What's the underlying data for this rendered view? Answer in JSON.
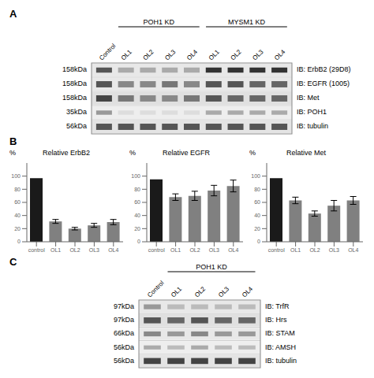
{
  "chart_data": [
    {
      "type": "blot",
      "panel": "A",
      "categories": [
        "Control",
        "OL1",
        "OL2",
        "OL3",
        "OL4",
        "OL1",
        "OL2",
        "OL3",
        "OL4"
      ],
      "groups": [
        {
          "name": "POH1 KD",
          "from": 1,
          "to": 4
        },
        {
          "name": "MYSM1 KD",
          "from": 5,
          "to": 8
        }
      ],
      "rows": [
        {
          "name": "IB: ErbB2 (29D8)",
          "label": "158kDa",
          "color": "#e8e8e8",
          "colors": [
            "#555555",
            "#aaaaaa",
            "#aaaaaa",
            "#aaaaaa",
            "#aaaaaa",
            "#333333",
            "#333333",
            "#333333",
            "#333333"
          ]
        },
        {
          "name": "IB: EGFR (1005)",
          "label": "158kDa",
          "color": "#e8e8e8",
          "colors": [
            "#555555",
            "#888888",
            "#888888",
            "#777777",
            "#888888",
            "#555555",
            "#555555",
            "#666666",
            "#666666"
          ]
        },
        {
          "name": "IB: Met",
          "label": "158kDa",
          "color": "#e0e0e0",
          "colors": [
            "#444444",
            "#777777",
            "#888888",
            "#888888",
            "#777777",
            "#555555",
            "#666666",
            "#666666",
            "#666666"
          ]
        },
        {
          "name": "IB: POH1",
          "label": "35kDa",
          "color": "#eeeeee",
          "colors": [
            "#999999",
            "#dddddd",
            "#dddddd",
            "#dddddd",
            "#dddddd",
            "#aaaaaa",
            "#aaaaaa",
            "#aaaaaa",
            "#aaaaaa"
          ]
        },
        {
          "name": "IB: tubulin",
          "label": "56kDa",
          "color": "#e4e4e4",
          "colors": [
            "#555555",
            "#555555",
            "#555555",
            "#555555",
            "#555555",
            "#555555",
            "#555555",
            "#555555",
            "#555555"
          ]
        }
      ]
    },
    {
      "type": "bar",
      "panel": "B",
      "title": "Relative ErbB2",
      "ylabel": "%",
      "categories": [
        "control",
        "OL1",
        "OL2",
        "OL3",
        "OL4"
      ],
      "values": [
        97,
        31,
        20,
        25,
        30
      ],
      "errors": [
        0,
        3,
        2,
        3,
        4
      ],
      "colors": [
        "#1a1a1a",
        "#808080",
        "#808080",
        "#808080",
        "#808080"
      ],
      "ylim": [
        0,
        120
      ],
      "yticks": [
        0,
        20,
        40,
        60,
        80,
        100
      ]
    },
    {
      "type": "bar",
      "title": "Relative EGFR",
      "ylabel": "%",
      "categories": [
        "control",
        "OL1",
        "OL2",
        "OL3",
        "OL4"
      ],
      "values": [
        95,
        68,
        70,
        78,
        85
      ],
      "errors": [
        0,
        5,
        7,
        8,
        9
      ],
      "colors": [
        "#1a1a1a",
        "#808080",
        "#808080",
        "#808080",
        "#808080"
      ],
      "ylim": [
        0,
        120
      ],
      "yticks": [
        0,
        20,
        40,
        60,
        80,
        100
      ]
    },
    {
      "type": "bar",
      "title": "Relative Met",
      "ylabel": "%",
      "categories": [
        "control",
        "OL1",
        "OL2",
        "OL3",
        "OL4"
      ],
      "values": [
        97,
        63,
        43,
        55,
        63
      ],
      "errors": [
        0,
        5,
        4,
        8,
        6
      ],
      "colors": [
        "#1a1a1a",
        "#808080",
        "#808080",
        "#808080",
        "#808080"
      ],
      "ylim": [
        0,
        120
      ],
      "yticks": [
        0,
        20,
        40,
        60,
        80,
        100
      ]
    },
    {
      "type": "blot",
      "panel": "C",
      "categories": [
        "Control",
        "OL1",
        "OL2",
        "OL3",
        "OL4"
      ],
      "groups": [
        {
          "name": "POH1 KD",
          "from": 1,
          "to": 4
        }
      ],
      "rows": [
        {
          "name": "IB: TrfR",
          "label": "97kDa",
          "color": "#e8e8e8",
          "colors": [
            "#999999",
            "#bbbbbb",
            "#bbbbbb",
            "#bbbbbb",
            "#bbbbbb"
          ]
        },
        {
          "name": "IB: Hrs",
          "label": "97kDa",
          "color": "#e0e0e0",
          "colors": [
            "#555555",
            "#666666",
            "#555555",
            "#666666",
            "#666666"
          ]
        },
        {
          "name": "IB: STAM",
          "label": "66kDa",
          "color": "#e8e8e8",
          "colors": [
            "#888888",
            "#999999",
            "#888888",
            "#999999",
            "#999999"
          ]
        },
        {
          "name": "IB: AMSH",
          "label": "56kDa",
          "color": "#eeeeee",
          "colors": [
            "#aaaaaa",
            "#bbbbbb",
            "#aaaaaa",
            "#bbbbbb",
            "#bbbbbb"
          ]
        },
        {
          "name": "IB: tubulin",
          "label": "56kDa",
          "color": "#e4e4e4",
          "colors": [
            "#444444",
            "#444444",
            "#444444",
            "#444444",
            "#444444"
          ]
        }
      ]
    }
  ]
}
